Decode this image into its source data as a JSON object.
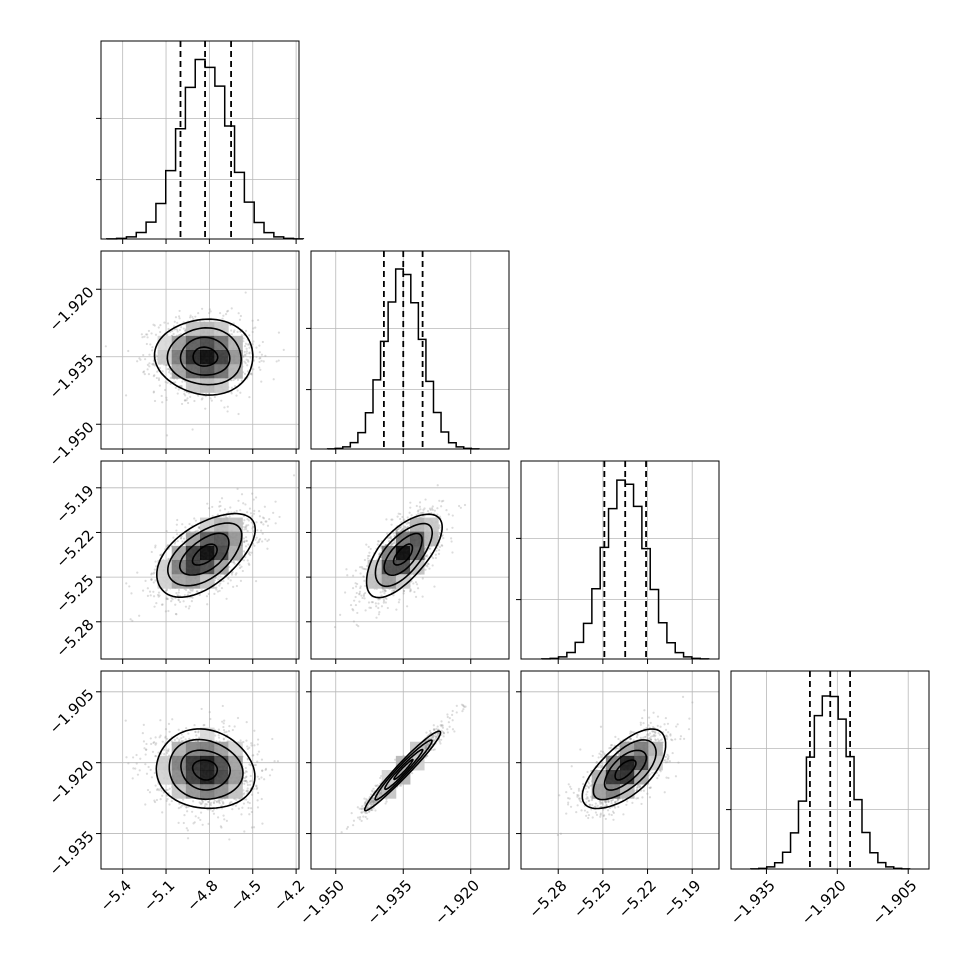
{
  "chart_data": {
    "type": "corner",
    "parameters": [
      {
        "id": "p1",
        "range": [
          -5.55,
          -4.18
        ],
        "ticks": [
          -5.4,
          -5.1,
          -4.8,
          -4.5,
          -4.2
        ],
        "tick_labels": [
          "−5.4",
          "−5.1",
          "−4.8",
          "−4.5",
          "−4.2"
        ],
        "mean": -4.83,
        "sd": 0.17,
        "quantiles": [
          -5.0,
          -4.83,
          -4.65
        ],
        "hist_ticks": [
          0.33,
          0.67
        ]
      },
      {
        "id": "p2",
        "range": [
          -1.9555,
          -1.9115
        ],
        "ticks": [
          -1.95,
          -1.935,
          -1.92
        ],
        "tick_labels": [
          "−1.950",
          "−1.935",
          "−1.920"
        ],
        "mean": -1.935,
        "sd": 0.0042,
        "quantiles": [
          -1.9393,
          -1.935,
          -1.9307
        ],
        "hist_ticks": [
          0.33,
          0.67
        ]
      },
      {
        "id": "p3",
        "range": [
          -5.305,
          -5.172
        ],
        "ticks": [
          -5.28,
          -5.25,
          -5.22,
          -5.19
        ],
        "tick_labels": [
          "−5.28",
          "−5.25",
          "−5.22",
          "−5.19"
        ],
        "mean": -5.235,
        "sd": 0.014,
        "quantiles": [
          -5.249,
          -5.235,
          -5.221
        ],
        "hist_ticks": [
          0.33,
          0.67
        ]
      },
      {
        "id": "p4",
        "range": [
          -1.9425,
          -1.9006
        ],
        "ticks": [
          -1.935,
          -1.92,
          -1.905
        ],
        "tick_labels": [
          "−1.935",
          "−1.920",
          "−1.905"
        ],
        "mean": -1.9215,
        "sd": 0.0042,
        "quantiles": [
          -1.9258,
          -1.9215,
          -1.9173
        ],
        "hist_ticks": [
          0.33,
          0.67
        ]
      }
    ],
    "correlations": [
      {
        "i": 1,
        "j": 0,
        "rho": -0.02
      },
      {
        "i": 2,
        "j": 0,
        "rho": 0.55
      },
      {
        "i": 2,
        "j": 1,
        "rho": 0.65
      },
      {
        "i": 3,
        "j": 0,
        "rho": -0.1
      },
      {
        "i": 3,
        "j": 1,
        "rho": 0.97
      },
      {
        "i": 3,
        "j": 2,
        "rho": 0.65
      }
    ],
    "grid": true,
    "histogram_bins": 20,
    "quantile_style": "dashed",
    "samples_per_panel": 1400
  }
}
